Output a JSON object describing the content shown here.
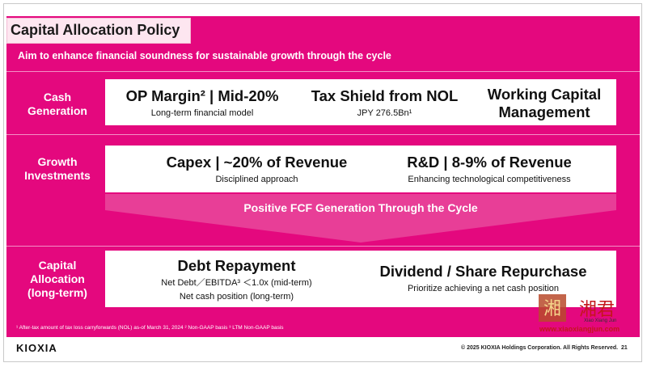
{
  "slide": {
    "title": "Capital Allocation Policy",
    "subtitle": "Aim to enhance financial soundness for sustainable growth through the cycle",
    "page_number": "21"
  },
  "rows": {
    "cash": {
      "label": "Cash\nGeneration",
      "items": [
        {
          "main": "OP Margin² | Mid-20%",
          "sub": "Long-term financial model"
        },
        {
          "main": "Tax Shield from NOL",
          "sub": "JPY 276.5Bn¹"
        },
        {
          "main": "Working Capital\nManagement",
          "sub": ""
        }
      ]
    },
    "growth": {
      "label": "Growth\nInvestments",
      "items": [
        {
          "main": "Capex | ~20% of Revenue",
          "sub": "Disciplined approach"
        },
        {
          "main": "R&D | 8-9% of Revenue",
          "sub": "Enhancing technological competitiveness"
        }
      ]
    },
    "fcf": "Positive FCF Generation Through the Cycle",
    "capital": {
      "label": "Capital\nAllocation\n(long-term)",
      "items": [
        {
          "main": "Debt Repayment",
          "sub": "Net Debt／EBITDA³ ＜1.0x (mid-term)",
          "sub2": "Net cash position (long-term)"
        },
        {
          "main": "Dividend / Share Repurchase",
          "sub": "Prioritize achieving a net cash position"
        }
      ]
    }
  },
  "footer": {
    "footnotes": "¹ After-tax amount of tax loss carryforwards (NOL) as-of March 31, 2024    ² Non-GAAP basis    ³ LTM Non-GAAP basis",
    "logo": "KIOXIA",
    "copyright": "© 2025 KIOXIA Holdings Corporation. All Rights Reserved."
  },
  "watermark": {
    "text": "湘君",
    "small": "Xiao Xiang Jun",
    "url": "www.xiaoxiangjun.com"
  },
  "colors": {
    "brand_pink": "#e4087e",
    "title_bg": "#fde6f0",
    "watermark_red": "#c4161c"
  },
  "icons": [
    "down-arrow-shape",
    "watermark-seal-logo"
  ]
}
